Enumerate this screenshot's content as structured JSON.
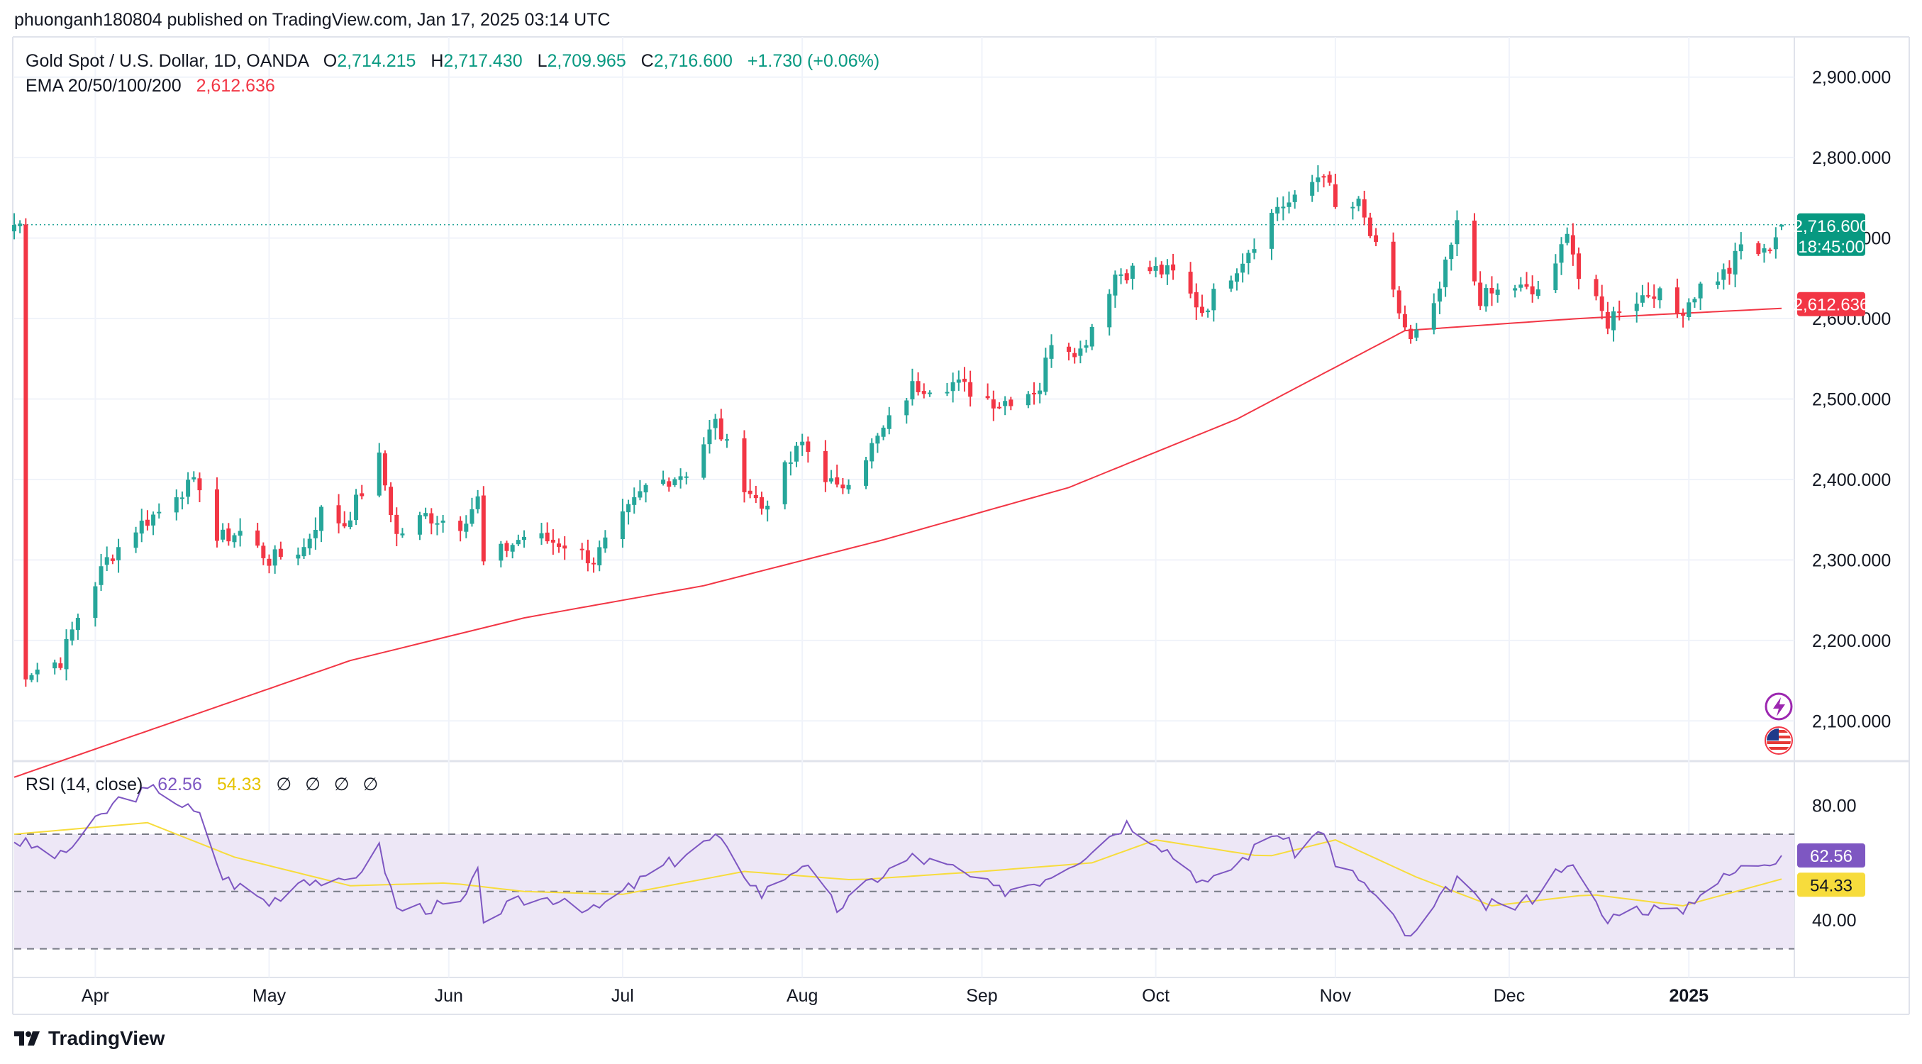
{
  "header": {
    "published": "phuonganh180804 published on TradingView.com, Jan 17, 2025 03:14 UTC"
  },
  "legend": {
    "symbol": "Gold Spot / U.S. Dollar, 1D, OANDA",
    "o_label": "O",
    "o_value": "2,714.215",
    "h_label": "H",
    "h_value": "2,717.430",
    "l_label": "L",
    "l_value": "2,709.965",
    "c_label": "C",
    "c_value": "2,716.600",
    "change": "+1.730 (+0.06%)",
    "ema_label": "EMA 20/50/100/200",
    "ema_value": "2,612.636",
    "rsi_label": "RSI (14, close)",
    "rsi_value": "62.56",
    "rsi_ma_value": "54.33",
    "rsi_extra_icons": [
      "∅",
      "∅",
      "∅",
      "∅"
    ]
  },
  "price_tags": {
    "last_price": "2,716.600",
    "countdown": "18:45:00",
    "ema_price": "2,612.636",
    "rsi_value": "62.56",
    "rsi_ma": "54.33"
  },
  "footer": {
    "brand": "TradingView"
  },
  "colors": {
    "up": "#26a69a",
    "down": "#f23645",
    "ema": "#f23645",
    "rsi_line": "#7e57c2",
    "rsi_ma": "#f7dc3c",
    "rsi_band": "#ede7f6"
  },
  "chart_data": [
    {
      "type": "candlestick",
      "title": "Gold Spot / U.S. Dollar, 1D, OANDA",
      "x_axis_labels": [
        "Apr",
        "May",
        "Jun",
        "Jul",
        "Aug",
        "Sep",
        "Oct",
        "Nov",
        "Dec",
        "2025"
      ],
      "y_axis_ticks": [
        "2,100.000",
        "2,200.000",
        "2,300.000",
        "2,400.000",
        "2,500.000",
        "2,600.000",
        "2,700.000",
        "2,800.000",
        "2,900.000"
      ],
      "ylim": [
        2050,
        2950
      ],
      "grid": true,
      "anchors": [
        [
          "2024-03-20",
          2160
        ],
        [
          "2024-03-26",
          2175
        ],
        [
          "2024-03-29",
          2230
        ],
        [
          "2024-04-03",
          2300
        ],
        [
          "2024-04-08",
          2340
        ],
        [
          "2024-04-12",
          2360
        ],
        [
          "2024-04-15",
          2385
        ],
        [
          "2024-04-19",
          2395
        ],
        [
          "2024-04-22",
          2325
        ],
        [
          "2024-04-26",
          2335
        ],
        [
          "2024-05-01",
          2300
        ],
        [
          "2024-05-07",
          2315
        ],
        [
          "2024-05-10",
          2360
        ],
        [
          "2024-05-14",
          2345
        ],
        [
          "2024-05-20",
          2425
        ],
        [
          "2024-05-23",
          2330
        ],
        [
          "2024-05-28",
          2355
        ],
        [
          "2024-06-03",
          2345
        ],
        [
          "2024-06-06",
          2375
        ],
        [
          "2024-06-07",
          2295
        ],
        [
          "2024-06-14",
          2330
        ],
        [
          "2024-06-21",
          2320
        ],
        [
          "2024-06-26",
          2300
        ],
        [
          "2024-07-05",
          2390
        ],
        [
          "2024-07-12",
          2410
        ],
        [
          "2024-07-17",
          2470
        ],
        [
          "2024-07-22",
          2395
        ],
        [
          "2024-07-25",
          2365
        ],
        [
          "2024-08-01",
          2445
        ],
        [
          "2024-08-07",
          2385
        ],
        [
          "2024-08-14",
          2450
        ],
        [
          "2024-08-20",
          2515
        ],
        [
          "2024-08-27",
          2520
        ],
        [
          "2024-09-04",
          2495
        ],
        [
          "2024-09-11",
          2515
        ],
        [
          "2024-09-13",
          2575
        ],
        [
          "2024-09-18",
          2560
        ],
        [
          "2024-09-24",
          2655
        ],
        [
          "2024-09-27",
          2660
        ],
        [
          "2024-10-01",
          2660
        ],
        [
          "2024-10-04",
          2655
        ],
        [
          "2024-10-09",
          2610
        ],
        [
          "2024-10-16",
          2675
        ],
        [
          "2024-10-22",
          2740
        ],
        [
          "2024-10-25",
          2745
        ],
        [
          "2024-10-30",
          2785
        ],
        [
          "2024-11-01",
          2735
        ],
        [
          "2024-11-05",
          2740
        ],
        [
          "2024-11-08",
          2685
        ],
        [
          "2024-11-14",
          2570
        ],
        [
          "2024-11-18",
          2610
        ],
        [
          "2024-11-22",
          2715
        ],
        [
          "2024-11-26",
          2625
        ],
        [
          "2024-12-02",
          2640
        ],
        [
          "2024-12-05",
          2630
        ],
        [
          "2024-12-09",
          2660
        ],
        [
          "2024-12-11",
          2715
        ],
        [
          "2024-12-13",
          2650
        ],
        [
          "2024-12-18",
          2595
        ],
        [
          "2024-12-20",
          2615
        ],
        [
          "2024-12-26",
          2635
        ],
        [
          "2024-12-30",
          2605
        ],
        [
          "2025-01-03",
          2640
        ],
        [
          "2025-01-08",
          2660
        ],
        [
          "2025-01-10",
          2690
        ],
        [
          "2025-01-14",
          2680
        ],
        [
          "2025-01-17",
          2716.6
        ]
      ],
      "ema_200_anchors": [
        [
          "2024-03-18",
          2030
        ],
        [
          "2024-04-15",
          2100
        ],
        [
          "2024-05-15",
          2175
        ],
        [
          "2024-06-14",
          2228
        ],
        [
          "2024-07-15",
          2268
        ],
        [
          "2024-08-15",
          2325
        ],
        [
          "2024-09-16",
          2390
        ],
        [
          "2024-10-15",
          2475
        ],
        [
          "2024-11-13",
          2585
        ],
        [
          "2024-12-13",
          2600
        ],
        [
          "2025-01-17",
          2612.636
        ]
      ],
      "last": {
        "open": 2714.215,
        "high": 2717.43,
        "low": 2709.965,
        "close": 2716.6,
        "change": 1.73,
        "change_pct": 0.06
      },
      "ema_last": 2612.636
    },
    {
      "type": "line",
      "title": "RSI (14, close)",
      "y_axis_ticks": [
        "40.00",
        "80.00"
      ],
      "ylim": [
        20,
        95
      ],
      "bands": {
        "upper": 70,
        "middle": 50,
        "lower": 30
      },
      "rsi_anchors": [
        [
          "2024-03-18",
          68
        ],
        [
          "2024-03-26",
          62
        ],
        [
          "2024-04-05",
          82
        ],
        [
          "2024-04-12",
          86
        ],
        [
          "2024-04-19",
          76
        ],
        [
          "2024-04-23",
          55
        ],
        [
          "2024-05-01",
          46
        ],
        [
          "2024-05-07",
          55
        ],
        [
          "2024-05-14",
          52
        ],
        [
          "2024-05-20",
          65
        ],
        [
          "2024-05-23",
          44
        ],
        [
          "2024-06-03",
          45
        ],
        [
          "2024-06-06",
          56
        ],
        [
          "2024-06-07",
          41
        ],
        [
          "2024-06-14",
          47
        ],
        [
          "2024-06-21",
          48
        ],
        [
          "2024-06-26",
          43
        ],
        [
          "2024-07-05",
          55
        ],
        [
          "2024-07-17",
          69
        ],
        [
          "2024-07-25",
          49
        ],
        [
          "2024-08-01",
          60
        ],
        [
          "2024-08-07",
          44
        ],
        [
          "2024-08-14",
          55
        ],
        [
          "2024-08-20",
          62
        ],
        [
          "2024-08-27",
          58
        ],
        [
          "2024-09-04",
          50
        ],
        [
          "2024-09-11",
          54
        ],
        [
          "2024-09-18",
          62
        ],
        [
          "2024-09-26",
          74
        ],
        [
          "2024-10-01",
          68
        ],
        [
          "2024-10-10",
          52
        ],
        [
          "2024-10-22",
          71
        ],
        [
          "2024-10-25",
          64
        ],
        [
          "2024-10-30",
          72
        ],
        [
          "2024-11-01",
          58
        ],
        [
          "2024-11-05",
          55
        ],
        [
          "2024-11-14",
          33
        ],
        [
          "2024-11-22",
          55
        ],
        [
          "2024-11-26",
          45
        ],
        [
          "2024-12-02",
          45
        ],
        [
          "2024-12-05",
          48
        ],
        [
          "2024-12-11",
          61
        ],
        [
          "2024-12-18",
          39
        ],
        [
          "2024-12-20",
          44
        ],
        [
          "2024-12-26",
          44
        ],
        [
          "2024-12-30",
          42
        ],
        [
          "2025-01-03",
          50
        ],
        [
          "2025-01-10",
          58
        ],
        [
          "2025-01-17",
          62.56
        ]
      ],
      "rsi_ma_anchors": [
        [
          "2024-03-18",
          70
        ],
        [
          "2024-04-10",
          74
        ],
        [
          "2024-04-25",
          62
        ],
        [
          "2024-05-15",
          52
        ],
        [
          "2024-06-01",
          53
        ],
        [
          "2024-06-14",
          50
        ],
        [
          "2024-07-01",
          49
        ],
        [
          "2024-07-22",
          57
        ],
        [
          "2024-08-10",
          54
        ],
        [
          "2024-09-01",
          57
        ],
        [
          "2024-09-20",
          60
        ],
        [
          "2024-10-01",
          68
        ],
        [
          "2024-10-20",
          62
        ],
        [
          "2024-11-01",
          68
        ],
        [
          "2024-11-15",
          55
        ],
        [
          "2024-11-28",
          45
        ],
        [
          "2024-12-15",
          49
        ],
        [
          "2024-12-31",
          45
        ],
        [
          "2025-01-17",
          54.33
        ]
      ],
      "last_rsi": 62.56,
      "last_ma": 54.33
    }
  ]
}
